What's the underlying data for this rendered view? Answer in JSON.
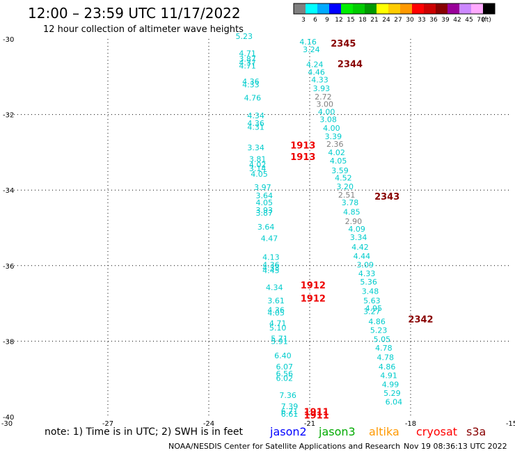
{
  "title": "12:00 – 23:59 UTC 11/17/2022",
  "subtitle": "12 hour collection of altimeter wave heights",
  "colorbar": {
    "colors": [
      "#808080",
      "#00ffff",
      "#00aaff",
      "#0000ff",
      "#00ee00",
      "#00cc00",
      "#009900",
      "#ffff00",
      "#ffcc00",
      "#ff9900",
      "#ff0000",
      "#cc0000",
      "#880000",
      "#990099",
      "#cc88ff",
      "#ffaaff",
      "#000000"
    ],
    "labels": [
      "3",
      "6",
      "9",
      "12",
      "15",
      "18",
      "21",
      "24",
      "27",
      "30",
      "33",
      "36",
      "39",
      "42",
      "45",
      "70",
      "(ft)"
    ]
  },
  "map": {
    "lon_range": [
      -30,
      -15
    ],
    "lat_range": [
      -40,
      -30
    ],
    "x_ticks": [
      "-30",
      "-27",
      "-24",
      "-21",
      "-18",
      "-15"
    ],
    "y_ticks": [
      "-30",
      "-32",
      "-34",
      "-36",
      "-38",
      "-40"
    ],
    "grid": "dotted"
  },
  "passes": [
    {
      "label": "2345",
      "lon": -20.0,
      "lat": -30.2,
      "color": "#880000"
    },
    {
      "label": "2344",
      "lon": -19.8,
      "lat": -30.75,
      "color": "#880000"
    },
    {
      "label": "1913",
      "lon": -21.2,
      "lat": -32.9,
      "color": "#ee0000"
    },
    {
      "label": "1913",
      "lon": -21.2,
      "lat": -33.2,
      "color": "#ee0000"
    },
    {
      "label": "2343",
      "lon": -18.7,
      "lat": -34.25,
      "color": "#880000"
    },
    {
      "label": "1912",
      "lon": -20.9,
      "lat": -36.6,
      "color": "#ee0000"
    },
    {
      "label": "1912",
      "lon": -20.9,
      "lat": -36.95,
      "color": "#ee0000"
    },
    {
      "label": "2342",
      "lon": -17.7,
      "lat": -37.5,
      "color": "#880000"
    },
    {
      "label": "1911",
      "lon": -20.8,
      "lat": -39.95,
      "color": "#ee0000"
    },
    {
      "label": "1911",
      "lon": -20.8,
      "lat": -40.05,
      "color": "#ee0000"
    }
  ],
  "observations": [
    {
      "v": "5.23",
      "lon": -22.95,
      "lat": -30.0,
      "c": "#00cccc"
    },
    {
      "v": "4.71",
      "lon": -22.85,
      "lat": -30.45,
      "c": "#00cccc"
    },
    {
      "v": "3.87",
      "lon": -22.85,
      "lat": -30.6,
      "c": "#00cccc"
    },
    {
      "v": "4.37",
      "lon": -22.85,
      "lat": -30.7,
      "c": "#00cccc"
    },
    {
      "v": "4.71",
      "lon": -22.85,
      "lat": -30.78,
      "c": "#00cccc"
    },
    {
      "v": "4.36",
      "lon": -22.75,
      "lat": -31.2,
      "c": "#00cccc"
    },
    {
      "v": "4.33",
      "lon": -22.75,
      "lat": -31.28,
      "c": "#00cccc"
    },
    {
      "v": "4.76",
      "lon": -22.7,
      "lat": -31.63,
      "c": "#00cccc"
    },
    {
      "v": "4.34",
      "lon": -22.6,
      "lat": -32.1,
      "c": "#00cccc"
    },
    {
      "v": "4.36",
      "lon": -22.6,
      "lat": -32.3,
      "c": "#00cccc"
    },
    {
      "v": "4.31",
      "lon": -22.6,
      "lat": -32.4,
      "c": "#00cccc"
    },
    {
      "v": "3.34",
      "lon": -22.6,
      "lat": -32.95,
      "c": "#00cccc"
    },
    {
      "v": "3.81",
      "lon": -22.55,
      "lat": -33.25,
      "c": "#00cccc"
    },
    {
      "v": "4.02",
      "lon": -22.55,
      "lat": -33.4,
      "c": "#00cccc"
    },
    {
      "v": "3.14",
      "lon": -22.55,
      "lat": -33.5,
      "c": "#00cccc"
    },
    {
      "v": "4.05",
      "lon": -22.5,
      "lat": -33.65,
      "c": "#00cccc"
    },
    {
      "v": "3.97",
      "lon": -22.4,
      "lat": -34.0,
      "c": "#00cccc"
    },
    {
      "v": "3.64",
      "lon": -22.35,
      "lat": -34.22,
      "c": "#00cccc"
    },
    {
      "v": "4.05",
      "lon": -22.35,
      "lat": -34.4,
      "c": "#00cccc"
    },
    {
      "v": "3.93",
      "lon": -22.35,
      "lat": -34.6,
      "c": "#00cccc"
    },
    {
      "v": "3.87",
      "lon": -22.35,
      "lat": -34.68,
      "c": "#00cccc"
    },
    {
      "v": "3.64",
      "lon": -22.3,
      "lat": -35.05,
      "c": "#00cccc"
    },
    {
      "v": "4.47",
      "lon": -22.2,
      "lat": -35.35,
      "c": "#00cccc"
    },
    {
      "v": "4.13",
      "lon": -22.15,
      "lat": -35.85,
      "c": "#00cccc"
    },
    {
      "v": "4.36",
      "lon": -22.15,
      "lat": -36.05,
      "c": "#00cccc"
    },
    {
      "v": "4.33",
      "lon": -22.15,
      "lat": -36.13,
      "c": "#00cccc"
    },
    {
      "v": "4.45",
      "lon": -22.15,
      "lat": -36.2,
      "c": "#00cccc"
    },
    {
      "v": "4.34",
      "lon": -22.05,
      "lat": -36.65,
      "c": "#00cccc"
    },
    {
      "v": "3.61",
      "lon": -22.0,
      "lat": -37.0,
      "c": "#00cccc"
    },
    {
      "v": "4.36",
      "lon": -22.0,
      "lat": -37.25,
      "c": "#00cccc"
    },
    {
      "v": "4.05",
      "lon": -22.0,
      "lat": -37.32,
      "c": "#00cccc"
    },
    {
      "v": "4.71",
      "lon": -21.95,
      "lat": -37.6,
      "c": "#00cccc"
    },
    {
      "v": "5.10",
      "lon": -21.95,
      "lat": -37.72,
      "c": "#00cccc"
    },
    {
      "v": "5.71",
      "lon": -21.9,
      "lat": -38.0,
      "c": "#00cccc"
    },
    {
      "v": "5.91",
      "lon": -21.9,
      "lat": -38.08,
      "c": "#00cccc"
    },
    {
      "v": "6.40",
      "lon": -21.8,
      "lat": -38.45,
      "c": "#00cccc"
    },
    {
      "v": "6.07",
      "lon": -21.75,
      "lat": -38.75,
      "c": "#00cccc"
    },
    {
      "v": "6.56",
      "lon": -21.75,
      "lat": -38.93,
      "c": "#00cccc"
    },
    {
      "v": "6.02",
      "lon": -21.75,
      "lat": -39.05,
      "c": "#00cccc"
    },
    {
      "v": "7.36",
      "lon": -21.65,
      "lat": -39.5,
      "c": "#00cccc"
    },
    {
      "v": "7.39",
      "lon": -21.6,
      "lat": -39.8,
      "c": "#00cccc"
    },
    {
      "v": "6.71",
      "lon": -21.6,
      "lat": -39.93,
      "c": "#00cccc"
    },
    {
      "v": "6.61",
      "lon": -21.6,
      "lat": -40.0,
      "c": "#00cccc"
    },
    {
      "v": "4.16",
      "lon": -21.05,
      "lat": -30.15,
      "c": "#00cccc"
    },
    {
      "v": "3.24",
      "lon": -20.95,
      "lat": -30.35,
      "c": "#00cccc"
    },
    {
      "v": "4.24",
      "lon": -20.85,
      "lat": -30.75,
      "c": "#00cccc"
    },
    {
      "v": "4.46",
      "lon": -20.8,
      "lat": -30.95,
      "c": "#00cccc"
    },
    {
      "v": "4.33",
      "lon": -20.7,
      "lat": -31.15,
      "c": "#00cccc"
    },
    {
      "v": "3.93",
      "lon": -20.65,
      "lat": -31.38,
      "c": "#00cccc"
    },
    {
      "v": "2.72",
      "lon": -20.6,
      "lat": -31.6,
      "c": "#808080"
    },
    {
      "v": "3.00",
      "lon": -20.55,
      "lat": -31.8,
      "c": "#808080"
    },
    {
      "v": "4.00",
      "lon": -20.5,
      "lat": -32.0,
      "c": "#00cccc"
    },
    {
      "v": "3.08",
      "lon": -20.45,
      "lat": -32.2,
      "c": "#00cccc"
    },
    {
      "v": "4.00",
      "lon": -20.35,
      "lat": -32.43,
      "c": "#00cccc"
    },
    {
      "v": "3.39",
      "lon": -20.3,
      "lat": -32.65,
      "c": "#00cccc"
    },
    {
      "v": "2.36",
      "lon": -20.25,
      "lat": -32.85,
      "c": "#808080"
    },
    {
      "v": "4.02",
      "lon": -20.2,
      "lat": -33.08,
      "c": "#00cccc"
    },
    {
      "v": "4.05",
      "lon": -20.15,
      "lat": -33.3,
      "c": "#00cccc"
    },
    {
      "v": "3.59",
      "lon": -20.1,
      "lat": -33.55,
      "c": "#00cccc"
    },
    {
      "v": "4.52",
      "lon": -20.0,
      "lat": -33.75,
      "c": "#00cccc"
    },
    {
      "v": "3.20",
      "lon": -19.95,
      "lat": -33.98,
      "c": "#00cccc"
    },
    {
      "v": "2.51",
      "lon": -19.9,
      "lat": -34.2,
      "c": "#808080"
    },
    {
      "v": "3.78",
      "lon": -19.8,
      "lat": -34.4,
      "c": "#00cccc"
    },
    {
      "v": "4.85",
      "lon": -19.75,
      "lat": -34.65,
      "c": "#00cccc"
    },
    {
      "v": "2.90",
      "lon": -19.7,
      "lat": -34.9,
      "c": "#808080"
    },
    {
      "v": "4.09",
      "lon": -19.6,
      "lat": -35.1,
      "c": "#00cccc"
    },
    {
      "v": "3.34",
      "lon": -19.55,
      "lat": -35.32,
      "c": "#00cccc"
    },
    {
      "v": "4.42",
      "lon": -19.5,
      "lat": -35.58,
      "c": "#00cccc"
    },
    {
      "v": "4.44",
      "lon": -19.45,
      "lat": -35.82,
      "c": "#00cccc"
    },
    {
      "v": "3.09",
      "lon": -19.35,
      "lat": -36.05,
      "c": "#00cccc"
    },
    {
      "v": "4.33",
      "lon": -19.3,
      "lat": -36.28,
      "c": "#00cccc"
    },
    {
      "v": "5.36",
      "lon": -19.25,
      "lat": -36.5,
      "c": "#00cccc"
    },
    {
      "v": "3.48",
      "lon": -19.2,
      "lat": -36.75,
      "c": "#00cccc"
    },
    {
      "v": "5.63",
      "lon": -19.15,
      "lat": -37.0,
      "c": "#00cccc"
    },
    {
      "v": "4.95",
      "lon": -19.1,
      "lat": -37.2,
      "c": "#00cccc"
    },
    {
      "v": "3.27",
      "lon": -19.15,
      "lat": -37.28,
      "c": "#00cccc"
    },
    {
      "v": "4.86",
      "lon": -19.0,
      "lat": -37.55,
      "c": "#00cccc"
    },
    {
      "v": "5.23",
      "lon": -18.95,
      "lat": -37.78,
      "c": "#00cccc"
    },
    {
      "v": "5.05",
      "lon": -18.85,
      "lat": -38.02,
      "c": "#00cccc"
    },
    {
      "v": "4.78",
      "lon": -18.8,
      "lat": -38.25,
      "c": "#00cccc"
    },
    {
      "v": "4.78",
      "lon": -18.75,
      "lat": -38.5,
      "c": "#00cccc"
    },
    {
      "v": "4.86",
      "lon": -18.7,
      "lat": -38.75,
      "c": "#00cccc"
    },
    {
      "v": "4.91",
      "lon": -18.65,
      "lat": -38.98,
      "c": "#00cccc"
    },
    {
      "v": "4.99",
      "lon": -18.6,
      "lat": -39.22,
      "c": "#00cccc"
    },
    {
      "v": "5.29",
      "lon": -18.55,
      "lat": -39.45,
      "c": "#00cccc"
    },
    {
      "v": "6.04",
      "lon": -18.5,
      "lat": -39.68,
      "c": "#00cccc"
    }
  ],
  "note": "note: 1) Time is in UTC; 2) SWH is in feet",
  "satellites": [
    {
      "name": "jason2",
      "color": "#0000ff"
    },
    {
      "name": "jason3",
      "color": "#00aa00"
    },
    {
      "name": "altika",
      "color": "#ff9900"
    },
    {
      "name": "cryosat",
      "color": "#ff0000"
    },
    {
      "name": "s3a",
      "color": "#880000"
    }
  ],
  "footer_left": "NOAA/NESDIS Center for Satellite Applications and Research",
  "footer_right": "Nov 19 08:36:13 UTC 2022"
}
